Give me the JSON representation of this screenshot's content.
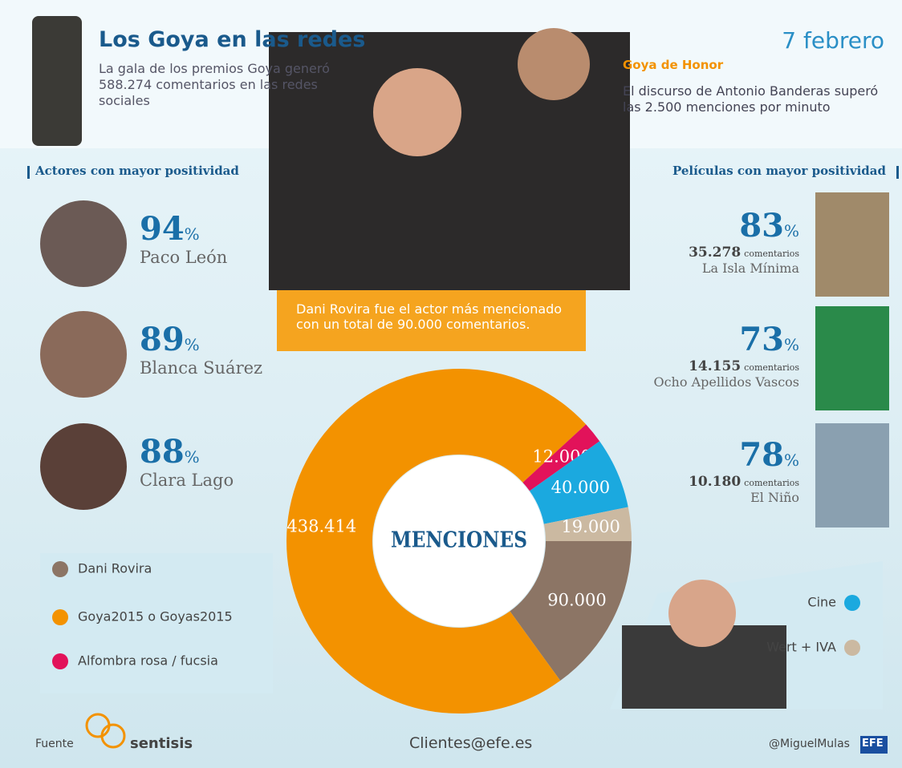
{
  "header": {
    "title": "Los Goya en las redes",
    "description": "La gala de los premios Goya generó 588.274 comentarios en las redes sociales",
    "date": "7 febrero",
    "honor_title": "Goya de Honor",
    "honor_text": "El discurso de Antonio Banderas superó las 2.500 menciones por minuto"
  },
  "actors": {
    "heading": "Actores con mayor positividad",
    "items": [
      {
        "percent": 94,
        "unit": "%",
        "name": "Paco León"
      },
      {
        "percent": 89,
        "unit": "%",
        "name": "Blanca Suárez"
      },
      {
        "percent": 88,
        "unit": "%",
        "name": "Clara Lago"
      }
    ]
  },
  "films": {
    "heading": "Películas con mayor positividad",
    "items": [
      {
        "percent": 83,
        "unit": "%",
        "comments": "35.278",
        "comments_word": "comentarios",
        "name": "La Isla Mínima"
      },
      {
        "percent": 73,
        "unit": "%",
        "comments": "14.155",
        "comments_word": "comentarios",
        "name": "Ocho Apellidos Vascos"
      },
      {
        "percent": 78,
        "unit": "%",
        "comments": "10.180",
        "comments_word": "comentarios",
        "name": "El Niño"
      }
    ]
  },
  "callout": "Dani Rovira fue el actor más mencionado con un total de 90.000 comentarios.",
  "chart_data": {
    "type": "donut",
    "center_label": "MENCIONES",
    "categories": [
      "Dani Rovira",
      "Goya2015 o Goyas2015",
      "Alfombra rosa / fucsia",
      "Cine",
      "Wert + IVA"
    ],
    "values": [
      90000,
      438414,
      12000,
      40000,
      19000
    ],
    "value_labels": [
      "90.000",
      "438.414",
      "12.000",
      "40.000",
      "19.000"
    ],
    "colors": [
      "#8c7565",
      "#f39200",
      "#e2125a",
      "#1ba9df",
      "#cbb9a1"
    ]
  },
  "footer": {
    "source_label": "Fuente",
    "source": "sentisis",
    "contact": "Clientes@efe.es",
    "author": "@MiguelMulas",
    "agency": "EFE"
  }
}
